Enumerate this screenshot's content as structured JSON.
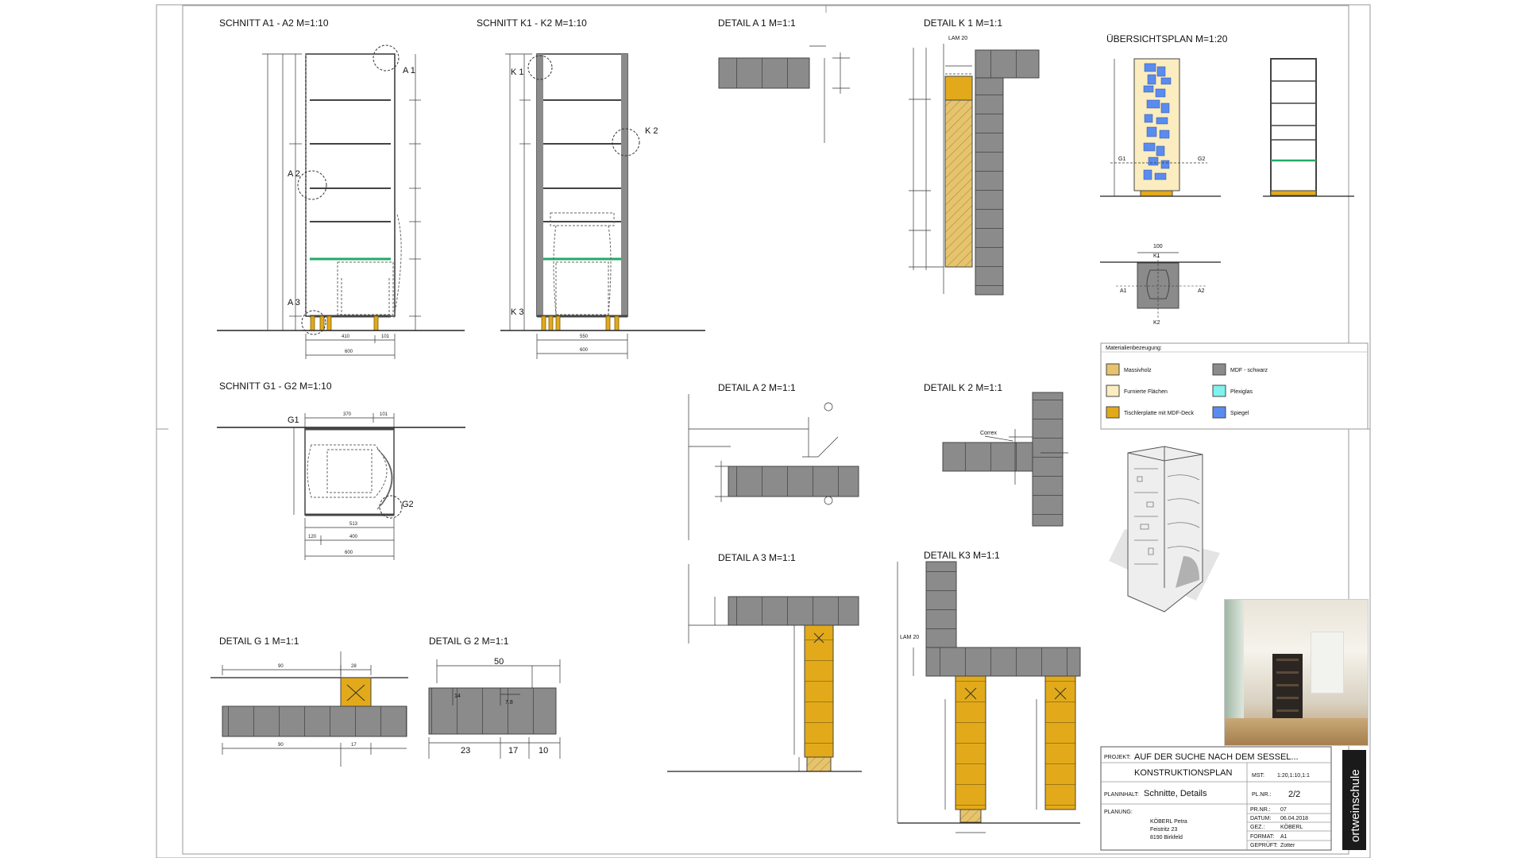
{
  "views": {
    "a1a2": "SCHNITT  A1 - A2  M=1:10",
    "k1k2": "SCHNITT  K1 - K2  M=1:10",
    "g1g2": "SCHNITT  G1 - G2  M=1:10",
    "detail_a1": "DETAIL  A 1  M=1:1",
    "detail_k1": "DETAIL  K 1  M=1:1",
    "uebersicht": "ÜBERSICHTSPLAN  M=1:20",
    "detail_a2": "DETAIL  A 2  M=1:1",
    "detail_k2": "DETAIL  K 2  M=1:1",
    "detail_a3": "DETAIL  A 3  M=1:1",
    "detail_k3": "DETAIL  K3  M=1:1",
    "detail_g1": "DETAIL  G 1  M=1:1",
    "detail_g2": "DETAIL  G 2  M=1:1"
  },
  "markers": {
    "a1": "A 1",
    "a2": "A 2",
    "a3": "A 3",
    "k1": "K 1",
    "k2": "K 2",
    "k3": "K 3",
    "g1": "G1",
    "g2": "G2",
    "ov_g1": "G1",
    "ov_g2": "G2",
    "ov_k1": "K1",
    "ov_k2": "K2",
    "ov_a1": "A1",
    "ov_a2": "A2"
  },
  "dims": {
    "a1a2_bottom": [
      "410",
      "101",
      "600"
    ],
    "k1k2_bottom": [
      "550",
      "600"
    ],
    "g1g2_top": [
      "370",
      "101"
    ],
    "g1g2_bottom_1": "513",
    "g1g2_bottom_2": [
      "120",
      "400"
    ],
    "g1g2_bottom_3": "600",
    "g1_top": [
      "90",
      "28"
    ],
    "g1_bottom": [
      "90",
      "17"
    ],
    "g2_top": "50",
    "g2_bottom": [
      "23",
      "17",
      "10"
    ],
    "g2_side": [
      "14",
      "7.8"
    ],
    "k1_lam": "LAM 20",
    "k3_lam": "LAM 20",
    "k2_label": "Correx",
    "overview_top": "100"
  },
  "legend": {
    "title": "Materialienbezeugung:",
    "items": [
      {
        "label": "Massivholz",
        "color": "#e6c36d"
      },
      {
        "label": "MDF - schwarz",
        "color": "#8b8b8b"
      },
      {
        "label": "Furnierte Flächen",
        "color": "#fbedbf"
      },
      {
        "label": "Plexiglas",
        "color": "#7ff2ef"
      },
      {
        "label": "Tischlerplatte mit MDF-Deck",
        "color": "#e2aa1a"
      },
      {
        "label": "Spiegel",
        "color": "#5a8cf0"
      }
    ]
  },
  "titleblock": {
    "projekt_label": "PROJEKT:",
    "projekt_value": "AUF DER SUCHE NACH DEM SESSEL...",
    "plan_type": "KONSTRUKTIONSPLAN",
    "mst_label": "MST:",
    "mst_value": "1:20,1:10,1:1",
    "planinhalt_label": "PLANINHALT:",
    "planinhalt_value": "Schnitte, Details",
    "plnr_label": "PL.NR.:",
    "plnr_value": "2/2",
    "planung_label": "PLANUNG:",
    "planung_name": "KÖBERL Petra",
    "planung_street": "Feistritz 23",
    "planung_city": "8190 Birkfeld",
    "prnr_label": "PR.NR.:",
    "prnr_value": "07",
    "datum_label": "DATUM:",
    "datum_value": "06.04.2018",
    "gez_label": "GEZ.:",
    "gez_value": "KÖBERL",
    "format_label": "FORMAT:",
    "format_value": "A1",
    "geprueft_label": "GEPRÜFT:",
    "geprueft_value": "Zotter",
    "school": "ortweinschule"
  },
  "colors": {
    "mdf": "#8b8b8b",
    "solid": "#e2aa1a",
    "massiv": "#e6c36d",
    "furnier": "#fbedbf",
    "spiegel": "#5a8cf0",
    "plexi": "#7ff2ef"
  }
}
